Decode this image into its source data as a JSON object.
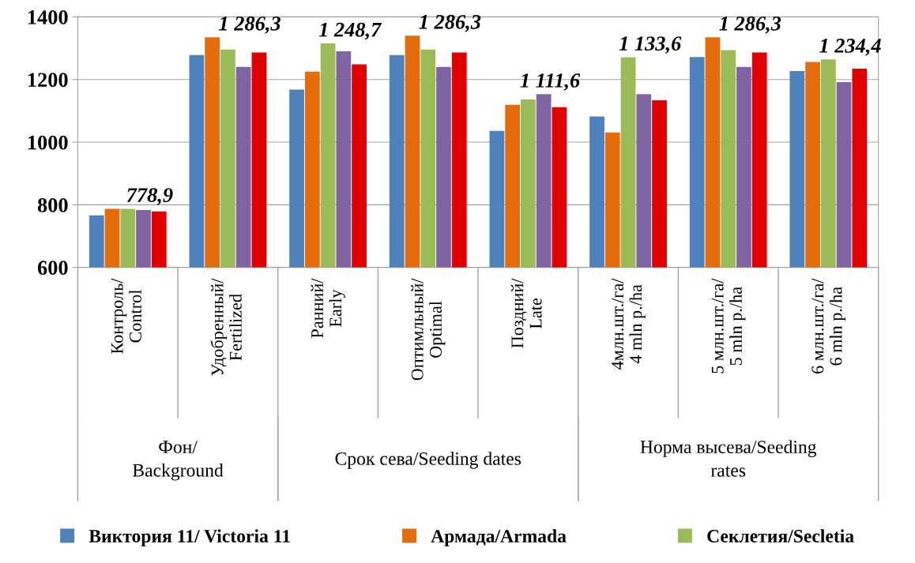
{
  "chart_data": {
    "type": "bar",
    "categories": [
      "Контроль/\nControl",
      "Удобренный/\nFertilized",
      "Ранний/\nEarly",
      "Оптимльный/\nOptimal",
      "Поздний/\nLate",
      "4млн.шт./га/\n4 mln p./ha",
      "5 млн.шт./га/\n5 mln p./ha",
      "6 млн.шт./га/\n6 mln p./ha"
    ],
    "series": [
      {
        "name": "Виктория 11/ Victoria 11",
        "color": "#4f81bd",
        "values": [
          766,
          1278,
          1168,
          1278,
          1036,
          1082,
          1272,
          1227
        ]
      },
      {
        "name": "Армада/Armada",
        "color": "#e46c0a",
        "values": [
          787,
          1335,
          1225,
          1340,
          1119,
          1031,
          1335,
          1256
        ]
      },
      {
        "name": "Секлетия/Secletia",
        "color": "#9bbb59",
        "values": [
          787,
          1296,
          1315,
          1296,
          1136,
          1271,
          1294,
          1264
        ]
      },
      {
        "color": "#8064a2",
        "values": [
          783,
          1240,
          1290,
          1240,
          1153,
          1153,
          1240,
          1192
        ]
      },
      {
        "color": "#e00000",
        "values": [
          778.9,
          1286.3,
          1248.7,
          1286.3,
          1111.6,
          1133.6,
          1286.3,
          1234.4
        ],
        "value_labels": [
          "778,9",
          "1 286,3",
          "1 248,7",
          "1 286,3",
          "1 111,6",
          "1 133,6",
          "1 286,3",
          "1 234,4"
        ]
      }
    ],
    "annotations": [
      "Фон/\nBackground",
      "Срок сева/Seeding dates",
      "Норма высева/Seeding\nrates"
    ],
    "ylim": [
      600,
      1400
    ],
    "yticks": [
      600,
      800,
      1000,
      1200,
      1400
    ],
    "grid": "y",
    "legend": "bottom"
  }
}
